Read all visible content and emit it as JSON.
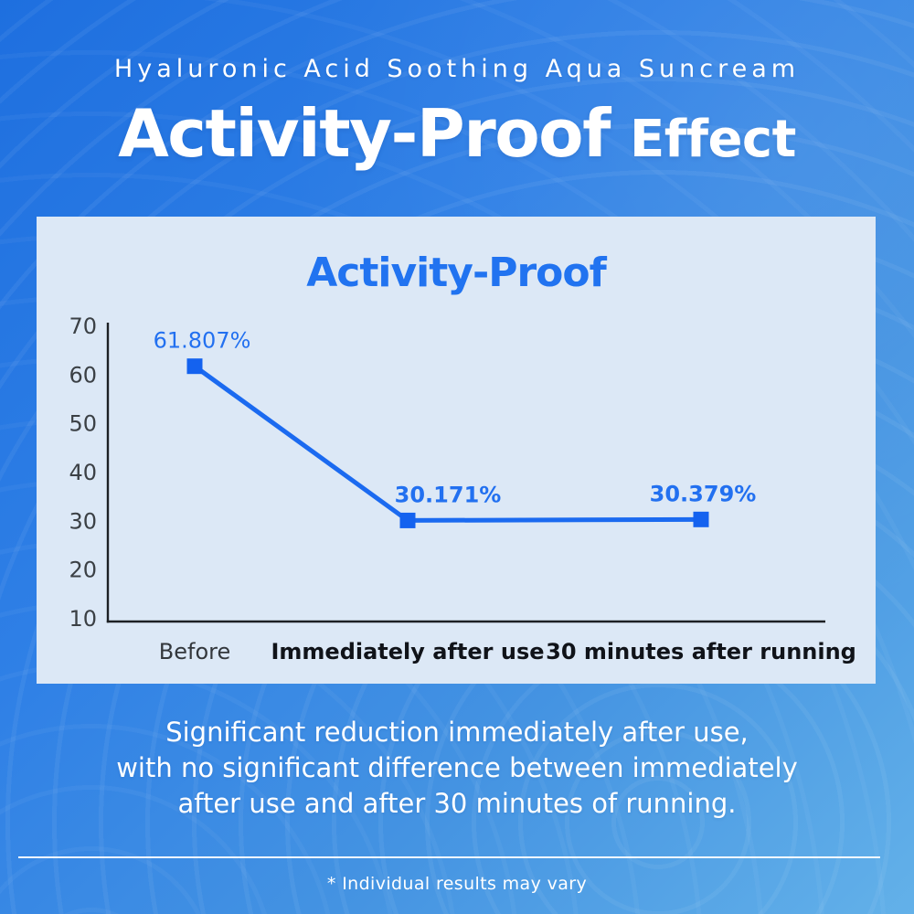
{
  "header": {
    "subtitle": "Hyaluronic Acid Soothing Aqua Suncream",
    "title_main": "Activity-Proof",
    "title_suffix": "Effect"
  },
  "panel": {
    "title": "Activity-Proof"
  },
  "chart_data": {
    "type": "line",
    "title": "Activity-Proof",
    "categories": [
      "Before",
      "Immediately after use",
      "30 minutes after running"
    ],
    "values": [
      61.807,
      30.171,
      30.379
    ],
    "point_labels": [
      "61.807%",
      "30.171%",
      "30.379%"
    ],
    "point_label_bold": [
      false,
      true,
      true
    ],
    "category_bold": [
      false,
      true,
      true
    ],
    "y_ticks": [
      70,
      60,
      50,
      40,
      30,
      20,
      10
    ],
    "ylim": [
      10,
      70
    ],
    "grid": false,
    "legend": "none",
    "marker": "square",
    "colors": {
      "line": "#1b6af0",
      "marker": "#1462ef",
      "point_label": "#2270f0",
      "axis": "#1d2024",
      "tick_text": "#3b4045",
      "category_bold_text": "#101319",
      "category_regular_text": "#33373c"
    }
  },
  "caption": {
    "lines": [
      "Significant reduction immediately after use,",
      "with no significant difference between immediately",
      "after use and after 30 minutes of running."
    ]
  },
  "footnote": {
    "text": "* Individual results may vary"
  },
  "colors": {
    "background_top": "#1e6fdf",
    "background_bottom": "#63b1e9",
    "panel_background": "#dce8f6",
    "accent_blue": "#1b6af0",
    "title_blue": "#2173f0",
    "text_white": "#ffffff"
  }
}
